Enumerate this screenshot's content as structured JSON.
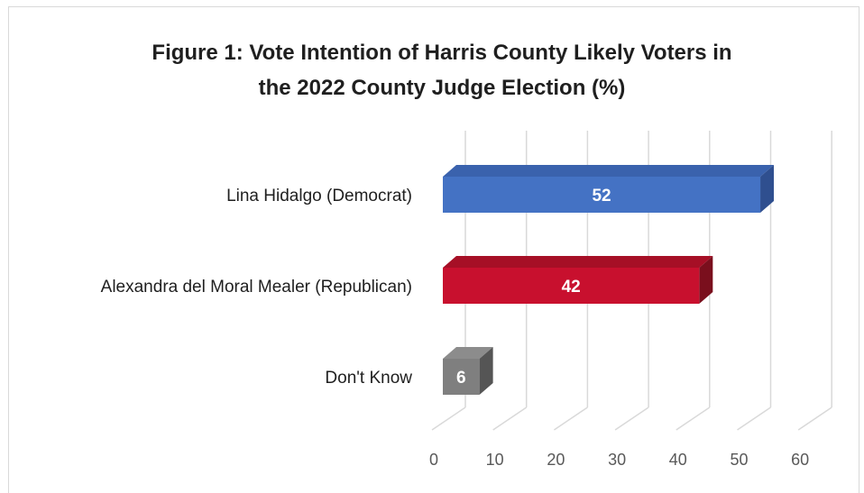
{
  "chart_data": {
    "type": "bar",
    "orientation": "horizontal",
    "style": "3d",
    "title": "Figure 1: Vote Intention of Harris County Likely Voters in the 2022 County Judge Election (%)",
    "title_lines": [
      "Figure 1: Vote Intention of Harris County Likely Voters in",
      "the 2022 County Judge Election (%)"
    ],
    "categories": [
      "Lina Hidalgo (Democrat)",
      "Alexandra del Moral Mealer (Republican)",
      "Don't Know"
    ],
    "values": [
      52,
      42,
      6
    ],
    "data_labels": [
      "52",
      "42",
      "6"
    ],
    "bar_colors": [
      "#4472c4",
      "#c8102e",
      "#7f7f7f"
    ],
    "bar_side_colors": [
      "#2f4f8f",
      "#7a0f1d",
      "#555555"
    ],
    "bar_top_colors": [
      "#3a62ad",
      "#a60f26",
      "#8c8c8c"
    ],
    "xlim": [
      0,
      60
    ],
    "x_ticks": [
      0,
      10,
      20,
      30,
      40,
      50,
      60
    ],
    "x_tick_labels": [
      "0",
      "10",
      "20",
      "30",
      "40",
      "50",
      "60"
    ],
    "xlabel": "",
    "ylabel": "",
    "grid": true,
    "legend": "none"
  }
}
